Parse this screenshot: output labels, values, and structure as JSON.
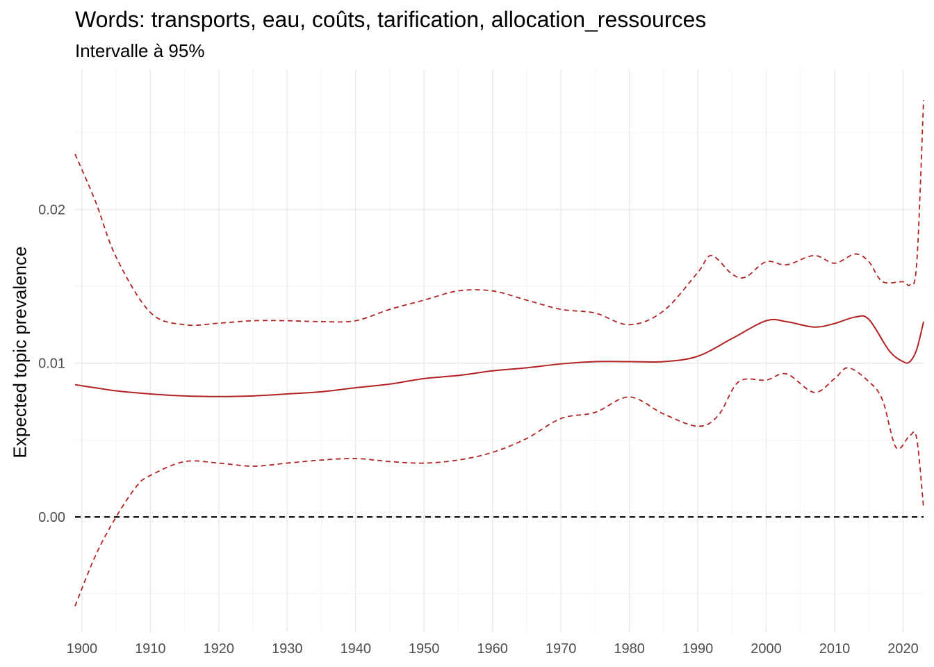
{
  "chart_data": {
    "type": "line",
    "title": "Words: transports, eau, coûts, tarification, allocation_ressources",
    "subtitle": "Intervalle à 95%",
    "xlabel": "",
    "ylabel": "Expected topic prevalence",
    "xlim": [
      1899,
      2023
    ],
    "ylim": [
      -0.0075,
      0.0291
    ],
    "x_ticks": [
      1900,
      1910,
      1920,
      1930,
      1940,
      1950,
      1960,
      1970,
      1980,
      1990,
      2000,
      2010,
      2020
    ],
    "x_tick_labels": [
      "1900",
      "1910",
      "1920",
      "1930",
      "1940",
      "1950",
      "1960",
      "1970",
      "1980",
      "1990",
      "2000",
      "2010",
      "2020"
    ],
    "y_ticks": [
      0.0,
      0.01,
      0.02
    ],
    "y_tick_labels": [
      "0.00",
      "0.01",
      "0.02"
    ],
    "grid": true,
    "reference_line": 0.0,
    "color": "#b22222",
    "series": [
      {
        "name": "estimate",
        "style": "solid",
        "x": [
          1899,
          1905,
          1910,
          1915,
          1920,
          1925,
          1930,
          1935,
          1940,
          1945,
          1950,
          1955,
          1960,
          1965,
          1970,
          1975,
          1980,
          1985,
          1990,
          1995,
          2000,
          2003,
          2007,
          2010,
          2013,
          2015,
          2018,
          2020,
          2021,
          2022,
          2023
        ],
        "y": [
          0.0086,
          0.0082,
          0.008,
          0.00787,
          0.00783,
          0.00787,
          0.008,
          0.00814,
          0.0084,
          0.00864,
          0.009,
          0.0092,
          0.0095,
          0.0097,
          0.00995,
          0.0101,
          0.0101,
          0.0101,
          0.01045,
          0.0116,
          0.01276,
          0.0127,
          0.01235,
          0.01258,
          0.013,
          0.01285,
          0.0108,
          0.0101,
          0.0101,
          0.0109,
          0.0127
        ]
      },
      {
        "name": "upper",
        "style": "dashed",
        "x": [
          1899,
          1902,
          1905,
          1910,
          1915,
          1920,
          1925,
          1930,
          1935,
          1940,
          1945,
          1950,
          1955,
          1960,
          1965,
          1970,
          1975,
          1980,
          1985,
          1990,
          1992,
          1995,
          1997,
          2000,
          2003,
          2007,
          2010,
          2013,
          2015,
          2017,
          2020,
          2021,
          2022,
          2023
        ],
        "y": [
          0.0236,
          0.0205,
          0.0169,
          0.0133,
          0.0125,
          0.0126,
          0.01276,
          0.01276,
          0.0127,
          0.01276,
          0.0135,
          0.0141,
          0.0147,
          0.0147,
          0.0141,
          0.0135,
          0.01326,
          0.0125,
          0.0134,
          0.0159,
          0.017,
          0.0158,
          0.0156,
          0.0166,
          0.0164,
          0.017,
          0.0165,
          0.0171,
          0.0166,
          0.0153,
          0.0153,
          0.0151,
          0.0165,
          0.0271
        ]
      },
      {
        "name": "lower",
        "style": "dashed",
        "x": [
          1899,
          1902,
          1905,
          1908,
          1910,
          1915,
          1920,
          1925,
          1930,
          1935,
          1940,
          1945,
          1950,
          1955,
          1960,
          1965,
          1970,
          1975,
          1980,
          1985,
          1990,
          1993,
          1996,
          2000,
          2003,
          2007,
          2010,
          2012,
          2015,
          2017,
          2019,
          2021,
          2022,
          2023
        ],
        "y": [
          -0.0058,
          -0.0025,
          0.0,
          0.002,
          0.0027,
          0.0036,
          0.0035,
          0.0033,
          0.0035,
          0.0037,
          0.0038,
          0.0036,
          0.0035,
          0.0037,
          0.0042,
          0.0051,
          0.0064,
          0.0068,
          0.0078,
          0.0067,
          0.0059,
          0.0066,
          0.0088,
          0.0089,
          0.0093,
          0.0081,
          0.009,
          0.0097,
          0.0088,
          0.0076,
          0.0045,
          0.0053,
          0.0051,
          0.0006
        ]
      }
    ]
  }
}
